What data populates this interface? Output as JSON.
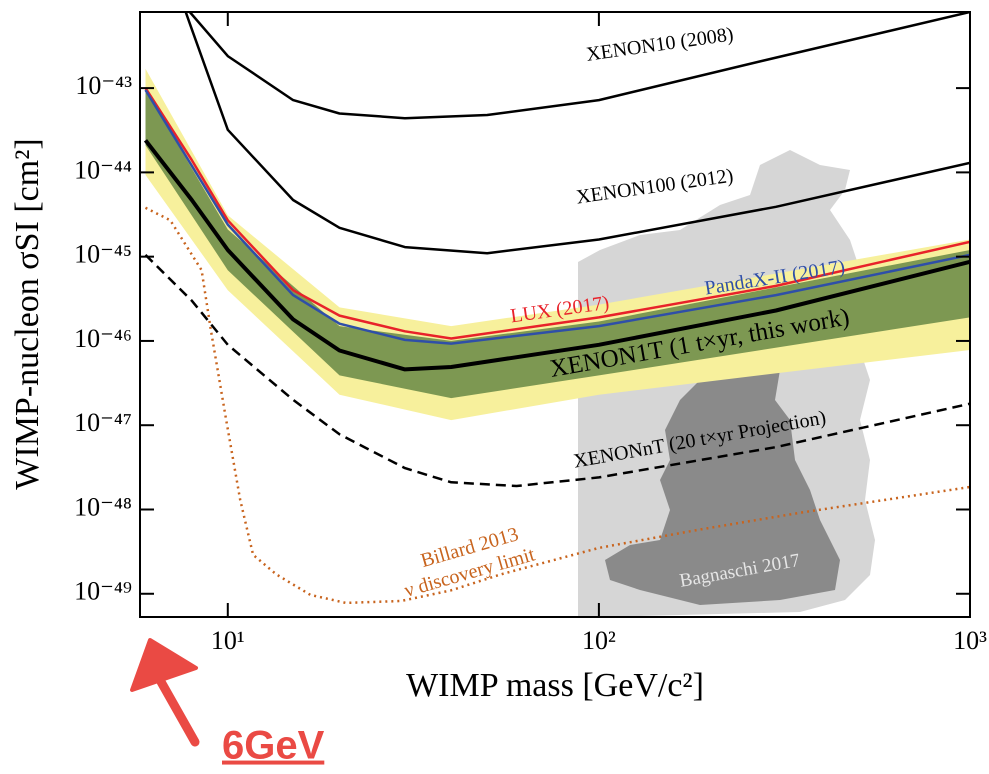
{
  "chart_data": {
    "type": "line",
    "xlabel": "WIMP mass [GeV/c²]",
    "ylabel": "WIMP-nucleon σSI [cm²]",
    "xscale": "log",
    "yscale": "log",
    "xlim": [
      5.8,
      1000
    ],
    "ylim": [
      5.3e-50,
      8e-43
    ],
    "xticks": [
      {
        "value": 10,
        "label": "10¹"
      },
      {
        "value": 100,
        "label": "10²"
      },
      {
        "value": 1000,
        "label": "10³"
      }
    ],
    "yticks": [
      {
        "value": 1e-43,
        "label": "10⁻⁴³"
      },
      {
        "value": 1e-44,
        "label": "10⁻⁴⁴"
      },
      {
        "value": 1e-45,
        "label": "10⁻⁴⁵"
      },
      {
        "value": 1e-46,
        "label": "10⁻⁴⁶"
      },
      {
        "value": 1e-47,
        "label": "10⁻⁴⁷"
      },
      {
        "value": 1e-48,
        "label": "10⁻⁴⁸"
      },
      {
        "value": 1e-49,
        "label": "10⁻⁴⁹"
      }
    ],
    "bands": [
      {
        "color": "#f7f09c",
        "x": [
          6,
          10,
          20,
          40,
          100,
          1000
        ],
        "upper": [
          1.7e-43,
          3.1e-45,
          2.5e-46,
          1.5e-46,
          2.7e-46,
          1.6e-45
        ],
        "lower": [
          9.3e-45,
          4e-46,
          2.3e-47,
          1.15e-47,
          2.3e-47,
          7.8e-47
        ]
      },
      {
        "color": "#7d9852",
        "x": [
          6,
          10,
          20,
          40,
          100,
          1000
        ],
        "upper": [
          9.5e-44,
          2.1e-45,
          1.5e-46,
          1e-46,
          1.7e-46,
          1.2e-45
        ],
        "lower": [
          2.1e-44,
          6.9e-46,
          3.9e-47,
          2.1e-47,
          3.9e-47,
          1.9e-46
        ]
      }
    ],
    "series": [
      {
        "name": "XENON10 (2008)",
        "color": "#000000",
        "style": "solid",
        "linewidth": 2.5,
        "x": [
          7.9,
          10,
          15,
          20,
          30,
          50,
          100,
          300,
          1000
        ],
        "values": [
          8e-43,
          2.4e-43,
          7.2e-44,
          5e-44,
          4.4e-44,
          4.8e-44,
          7.2e-44,
          2.3e-43,
          8e-43
        ]
      },
      {
        "name": "XENON100 (2012)",
        "color": "#000000",
        "style": "solid",
        "linewidth": 2.5,
        "x": [
          7.7,
          8,
          10,
          15,
          20,
          30,
          50,
          100,
          300,
          1000
        ],
        "values": [
          8e-43,
          5e-43,
          3.2e-44,
          4.7e-45,
          2.2e-45,
          1.3e-45,
          1.1e-45,
          1.6e-45,
          3.9e-45,
          1.3e-44
        ]
      },
      {
        "name": "LUX (2017)",
        "color": "#e8222a",
        "style": "solid",
        "linewidth": 2.5,
        "x": [
          6,
          8,
          10,
          15,
          20,
          30,
          40,
          100,
          300,
          1000
        ],
        "values": [
          1e-43,
          1.4e-44,
          2.7e-45,
          4e-46,
          2e-46,
          1.3e-46,
          1.07e-46,
          1.9e-46,
          4.5e-46,
          1.5e-45
        ]
      },
      {
        "name": "PandaX-II (2017)",
        "color": "#2f4fa8",
        "style": "solid",
        "linewidth": 2.5,
        "x": [
          6,
          10,
          15,
          20,
          30,
          40,
          100,
          300,
          1000
        ],
        "values": [
          9.5e-44,
          2.4e-45,
          3.5e-46,
          1.6e-46,
          1.03e-46,
          9.3e-47,
          1.5e-46,
          3.5e-46,
          1.05e-45
        ]
      },
      {
        "name": "XENON1T (1 t×yr, this work)",
        "color": "#000000",
        "style": "solid",
        "linewidth": 4,
        "x": [
          6,
          8,
          10,
          15,
          20,
          30,
          40,
          100,
          300,
          1000
        ],
        "values": [
          2.4e-44,
          4.7e-45,
          1.2e-45,
          1.8e-46,
          7.7e-47,
          4.6e-47,
          4.9e-47,
          9e-47,
          2.3e-46,
          8.7e-46
        ]
      },
      {
        "name": "XENONnT (20 t×yr Projection)",
        "color": "#000000",
        "style": "dashed",
        "linewidth": 2.5,
        "x": [
          6,
          8,
          10,
          15,
          20,
          30,
          40,
          60,
          100,
          300,
          1000
        ],
        "values": [
          1.05e-45,
          3e-46,
          9e-47,
          2e-47,
          7.8e-48,
          3.1e-48,
          2.1e-48,
          1.9e-48,
          2.4e-48,
          5.5e-48,
          1.8e-47
        ]
      },
      {
        "name": "Billard 2013",
        "color": "#c8641e",
        "style": "dotted",
        "linewidth": 2.5,
        "x": [
          6,
          7,
          8.5,
          9,
          9.9,
          10.8,
          11.7,
          13.5,
          16.7,
          20.8,
          29.3,
          40,
          54.5,
          100,
          188,
          352,
          1000
        ],
        "values": [
          3.8e-45,
          2.7e-45,
          6.9e-46,
          1.36e-46,
          1.15e-47,
          1.3e-48,
          2.9e-49,
          1.7e-49,
          9.7e-50,
          7.8e-50,
          8.2e-50,
          1.1e-49,
          1.7e-49,
          3.5e-49,
          5.8e-49,
          9.2e-49,
          1.85e-48
        ]
      }
    ],
    "annotations": [
      "ν discovery limit",
      "Bagnaschi 2017",
      "6GeV"
    ]
  }
}
